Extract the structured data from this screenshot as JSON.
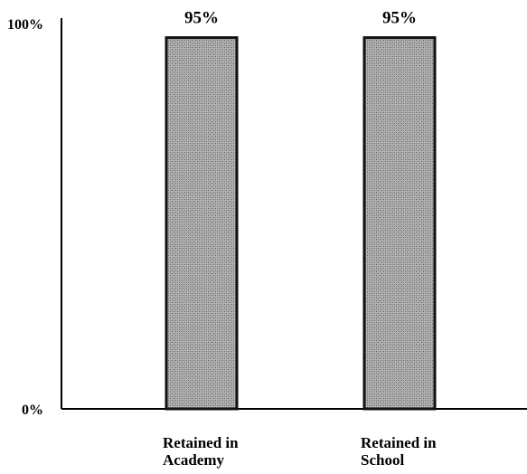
{
  "chart_data": {
    "type": "bar",
    "categories": [
      [
        "Retained in",
        "Academy"
      ],
      [
        "Retained in",
        "School"
      ]
    ],
    "values": [
      95,
      95
    ],
    "data_labels": [
      "95%",
      "95%"
    ],
    "ytick_labels": [
      "100%",
      "0%"
    ],
    "ylim": [
      0,
      100
    ],
    "grid": false,
    "bar_fill": "#a9a9a9",
    "bar_edge": "#111111"
  }
}
